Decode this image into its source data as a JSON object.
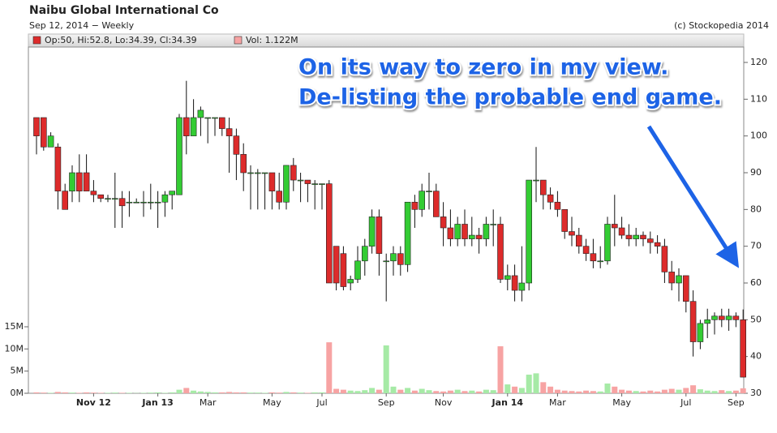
{
  "chart_data": {
    "type": "candlestick",
    "title": "Naibu Global International Co",
    "subtitle": "Sep 12, 2014 − Weekly",
    "source": "(c) Stockopedia 2014",
    "legend_price": "Op:50, Hi:52.8, Lo:34.39, Cl:34.39",
    "legend_volume": "Vol: 1.122M",
    "annotations": [
      "On its way to zero in my view.",
      "De-listing the probable end game."
    ],
    "up_color": "#33cc33",
    "down_color": "#dd2b2b",
    "volume_up_color": "#a6eaa6",
    "volume_down_color": "#f7a3a3",
    "categories": [
      null,
      null,
      null,
      null,
      null,
      null,
      null,
      null,
      "Nov 12",
      null,
      null,
      null,
      null,
      null,
      null,
      null,
      null,
      "Jan 13",
      null,
      null,
      null,
      null,
      null,
      null,
      "Mar",
      null,
      null,
      null,
      null,
      null,
      null,
      null,
      null,
      "May",
      null,
      null,
      null,
      null,
      null,
      null,
      "Jul",
      null,
      null,
      null,
      null,
      null,
      null,
      null,
      null,
      "Sep",
      null,
      null,
      null,
      null,
      null,
      null,
      null,
      "Nov",
      null,
      null,
      null,
      null,
      null,
      null,
      null,
      null,
      "Jan 14",
      null,
      null,
      null,
      null,
      null,
      null,
      "Mar",
      null,
      null,
      null,
      null,
      null,
      null,
      null,
      null,
      "May",
      null,
      null,
      null,
      null,
      null,
      null,
      null,
      null,
      "Jul",
      null,
      null,
      null,
      null,
      null,
      null,
      "Sep",
      null
    ],
    "open": [
      105,
      105,
      97,
      97,
      85,
      85,
      90,
      90,
      85,
      84,
      83,
      83,
      83,
      82,
      82,
      82,
      82,
      82,
      82,
      84,
      84,
      105,
      100,
      105,
      105,
      105,
      105,
      102,
      100,
      95,
      90,
      90,
      90,
      90,
      85,
      82,
      92,
      88,
      88,
      87,
      87,
      87,
      70,
      68,
      60,
      61,
      66,
      70,
      78,
      66,
      66,
      68,
      65,
      82,
      80,
      85,
      85,
      78,
      75,
      72,
      76,
      72,
      73,
      72,
      76,
      76,
      61,
      62,
      58,
      60,
      88,
      88,
      84,
      82,
      80,
      74,
      73,
      70,
      68,
      66,
      66,
      76,
      75,
      73,
      72,
      73,
      72,
      71,
      70,
      63,
      60,
      62,
      55,
      44,
      49,
      50,
      51,
      50,
      51,
      50
    ],
    "high": [
      105,
      105,
      101,
      98,
      87,
      92,
      95,
      95,
      88,
      84,
      84,
      90,
      85,
      85,
      83,
      85,
      87,
      85,
      85,
      85,
      106,
      115,
      110,
      108,
      105,
      105,
      105,
      105,
      102,
      98,
      92,
      91,
      90,
      90,
      90,
      92,
      94,
      90,
      88,
      88,
      87,
      88,
      70,
      70,
      62,
      70,
      72,
      80,
      80,
      68,
      70,
      70,
      82,
      84,
      87,
      90,
      87,
      82,
      80,
      78,
      80,
      78,
      75,
      78,
      80,
      78,
      65,
      65,
      70,
      88,
      97,
      88,
      86,
      85,
      80,
      78,
      75,
      72,
      72,
      70,
      78,
      84,
      78,
      76,
      75,
      74,
      74,
      73,
      72,
      66,
      64,
      62,
      58,
      50,
      53,
      52,
      53,
      53,
      52,
      52.8
    ],
    "low": [
      95,
      96,
      97,
      80,
      80,
      82,
      82,
      85,
      82,
      82,
      82,
      75,
      75,
      78,
      82,
      78,
      80,
      75,
      78,
      80,
      84,
      95,
      100,
      100,
      98,
      100,
      100,
      90,
      88,
      85,
      80,
      80,
      80,
      80,
      80,
      80,
      85,
      82,
      82,
      80,
      80,
      60,
      58,
      58,
      58,
      60,
      62,
      68,
      62,
      55,
      62,
      62,
      63,
      75,
      78,
      80,
      78,
      70,
      70,
      70,
      70,
      70,
      68,
      70,
      70,
      60,
      58,
      55,
      55,
      58,
      82,
      80,
      80,
      78,
      72,
      70,
      68,
      66,
      64,
      64,
      65,
      70,
      72,
      70,
      70,
      70,
      68,
      68,
      60,
      58,
      55,
      52,
      40,
      42,
      45,
      46,
      48,
      47,
      48,
      34.39
    ],
    "close": [
      100,
      97,
      100,
      85,
      80,
      90,
      85,
      85,
      84,
      83,
      83,
      83,
      81,
      82,
      82,
      82,
      82,
      82,
      84,
      85,
      105,
      100,
      105,
      107,
      105,
      105,
      102,
      100,
      95,
      90,
      90,
      90,
      90,
      85,
      82,
      92,
      88,
      88,
      87,
      87,
      87,
      60,
      60,
      59,
      61,
      66,
      70,
      78,
      68,
      66,
      68,
      65,
      82,
      80,
      85,
      85,
      78,
      75,
      72,
      76,
      72,
      73,
      72,
      76,
      76,
      61,
      62,
      58,
      60,
      88,
      88,
      84,
      82,
      80,
      74,
      73,
      70,
      68,
      66,
      66,
      76,
      75,
      73,
      72,
      73,
      72,
      71,
      70,
      63,
      60,
      62,
      55,
      44,
      49,
      50,
      51,
      50,
      51,
      50,
      34.39
    ],
    "volume": [
      200000,
      150000,
      100000,
      300000,
      200000,
      150000,
      100000,
      200000,
      150000,
      100000,
      100000,
      150000,
      100000,
      100000,
      50000,
      100000,
      150000,
      200000,
      100000,
      200000,
      800000,
      1200000,
      600000,
      400000,
      300000,
      200000,
      200000,
      300000,
      200000,
      200000,
      150000,
      150000,
      100000,
      200000,
      150000,
      300000,
      200000,
      150000,
      100000,
      200000,
      200000,
      11500000,
      1000000,
      800000,
      600000,
      500000,
      700000,
      1200000,
      800000,
      10800000,
      1500000,
      800000,
      1200000,
      600000,
      1000000,
      700000,
      500000,
      400000,
      600000,
      800000,
      500000,
      600000,
      400000,
      800000,
      700000,
      10600000,
      2000000,
      1500000,
      1200000,
      4200000,
      4500000,
      2500000,
      1500000,
      800000,
      600000,
      500000,
      400000,
      600000,
      500000,
      400000,
      2200000,
      1500000,
      800000,
      600000,
      500000,
      400000,
      600000,
      400000,
      800000,
      1000000,
      800000,
      1200000,
      1800000,
      900000,
      600000,
      500000,
      700000,
      500000,
      600000,
      1122000
    ],
    "ylim": [
      30,
      120
    ],
    "yticks": [
      30,
      40,
      50,
      60,
      70,
      80,
      90,
      100,
      110,
      120
    ],
    "y2lim": [
      0,
      15000000
    ],
    "y2ticks": [
      {
        "value": 0,
        "label": "0M"
      },
      {
        "value": 5000000,
        "label": "5M"
      },
      {
        "value": 10000000,
        "label": "10M"
      },
      {
        "value": 15000000,
        "label": "15M"
      }
    ]
  }
}
